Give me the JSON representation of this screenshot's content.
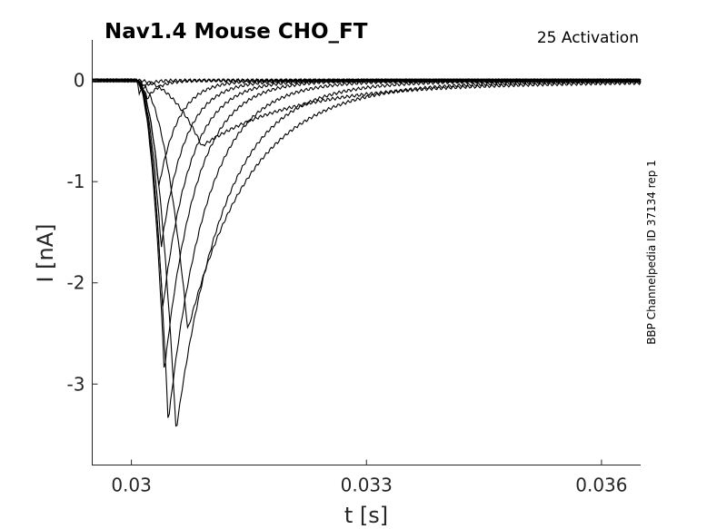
{
  "chart_data": {
    "type": "line",
    "title": "Nav1.4  Mouse  CHO_FT",
    "subtitle": "25  Activation",
    "side_label": "BBP Channelpedia ID 37134 rep 1",
    "xlabel": "t [s]",
    "ylabel": "I [nA]",
    "xlim": [
      0.0295,
      0.0365
    ],
    "ylim": [
      -3.8,
      0.4
    ],
    "xticks": [
      0.03,
      0.033,
      0.036
    ],
    "xtick_labels": [
      "0.03",
      "0.033",
      "0.036"
    ],
    "yticks": [
      0,
      -1,
      -2,
      -3
    ],
    "ytick_labels": [
      "0",
      "-1",
      "-2",
      "-3"
    ],
    "grid": false,
    "legend": "none",
    "series": [
      {
        "peak_t": 0.0301,
        "peak_i": -0.12,
        "rise": 8e-05,
        "tau": 0.0001,
        "tail": 0.0
      },
      {
        "peak_t": 0.0302,
        "peak_i": -0.18,
        "rise": 9e-05,
        "tau": 0.00015,
        "tail": 0.0
      },
      {
        "peak_t": 0.03035,
        "peak_i": -1.05,
        "rise": 0.00012,
        "tau": 0.00025,
        "tail": 0.0
      },
      {
        "peak_t": 0.03038,
        "peak_i": -1.65,
        "rise": 0.00013,
        "tau": 0.0003,
        "tail": 0.0
      },
      {
        "peak_t": 0.0304,
        "peak_i": -2.25,
        "rise": 0.00014,
        "tau": 0.00035,
        "tail": 0.0
      },
      {
        "peak_t": 0.03042,
        "peak_i": -2.88,
        "rise": 0.00014,
        "tau": 0.0004,
        "tail": 0.0
      },
      {
        "peak_t": 0.03047,
        "peak_i": -3.38,
        "rise": 0.00015,
        "tau": 0.00048,
        "tail": -0.01
      },
      {
        "peak_t": 0.03057,
        "peak_i": -3.47,
        "rise": 0.00017,
        "tau": 0.0006,
        "tail": -0.02
      },
      {
        "peak_t": 0.03072,
        "peak_i": -2.47,
        "rise": 0.0002,
        "tau": 0.0008,
        "tail": -0.04
      },
      {
        "peak_t": 0.0309,
        "peak_i": -0.65,
        "rise": 0.0003,
        "tau": 0.0011,
        "tail": -0.09
      }
    ]
  }
}
